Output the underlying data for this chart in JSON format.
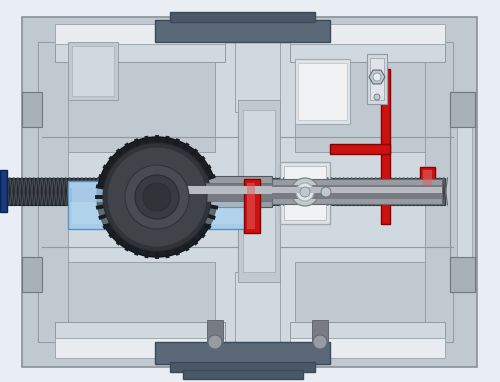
{
  "bg_color": "#e8eef4",
  "body_main": "#c0c8d0",
  "body_dark": "#a8b0b8",
  "body_light": "#d0d8e0",
  "body_white": "#e8ecf0",
  "dark_bluegray": "#5a6878",
  "darker_bluegray": "#4a5868",
  "gear_black": "#1c2024",
  "gear_dark": "#303438",
  "gear_mid": "#484c52",
  "gear_light": "#686c72",
  "shaft_dark": "#505458",
  "shaft_mid": "#787c82",
  "shaft_light": "#989ca2",
  "shaft_highlight": "#b8bcc2",
  "blue_light": "#a8cce8",
  "blue_mid": "#90b8e0",
  "blue_dark": "#78a4d0",
  "red_main": "#cc1111",
  "red_light": "#e06060",
  "white_part": "#f0f2f4",
  "off_white": "#e0e4e8",
  "worm_dark": "#282c30",
  "worm_mid": "#404448"
}
